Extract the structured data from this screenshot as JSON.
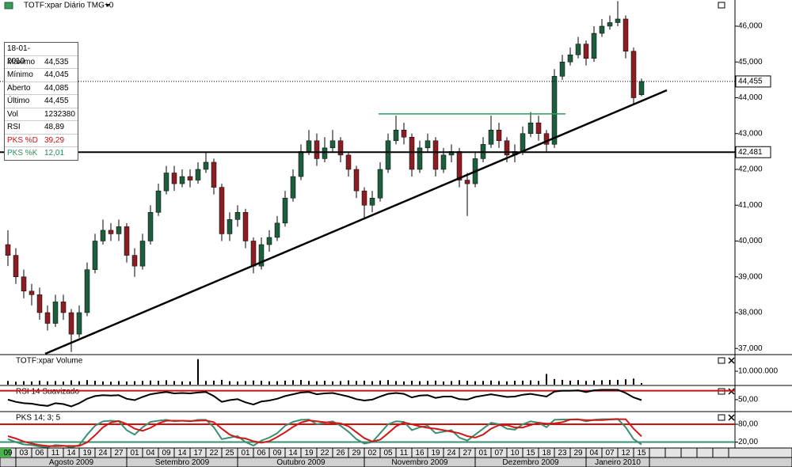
{
  "chart_data": [
    {
      "type": "candlestick",
      "title": "TOTF:xpar Diário TMG+0",
      "open": [
        39.9,
        39.6,
        39.0,
        38.6,
        38.5,
        38.0,
        37.7,
        38.3,
        38.0,
        37.4,
        38.0,
        39.2,
        40.0,
        40.3,
        40.2,
        40.4,
        39.6,
        39.3,
        40.0,
        40.8,
        41.4,
        41.9,
        41.6,
        41.8,
        41.7,
        42.0,
        42.2,
        41.5,
        40.2,
        40.6,
        40.8,
        40.0,
        39.3,
        39.9,
        40.1,
        40.5,
        41.2,
        41.8,
        42.5,
        42.8,
        42.3,
        42.6,
        42.8,
        42.4,
        42.0,
        41.4,
        41.0,
        41.2,
        42.0,
        42.8,
        43.1,
        42.9,
        42.0,
        42.6,
        42.8,
        42.0,
        42.4,
        42.5,
        41.7,
        41.6,
        42.3,
        42.7,
        43.1,
        42.8,
        42.4,
        42.5,
        43.0,
        43.3,
        43.0,
        42.7,
        44.6,
        45.0,
        45.2,
        45.5,
        45.1,
        45.8,
        46.0,
        46.1,
        46.2,
        45.3,
        44.085
      ],
      "high": [
        40.3,
        39.8,
        39.2,
        38.8,
        38.7,
        38.2,
        38.5,
        38.5,
        38.1,
        38.2,
        39.4,
        40.2,
        40.6,
        40.5,
        40.6,
        40.5,
        39.8,
        40.2,
        41.0,
        41.6,
        42.1,
        42.1,
        42.0,
        42.0,
        42.2,
        42.5,
        42.3,
        41.6,
        40.8,
        41.0,
        40.9,
        40.1,
        40.1,
        40.3,
        40.7,
        41.4,
        42.0,
        42.7,
        43.1,
        43.0,
        42.9,
        43.1,
        42.9,
        42.5,
        42.1,
        41.5,
        41.4,
        42.2,
        43.0,
        43.5,
        43.3,
        43.0,
        42.8,
        43.0,
        42.9,
        42.6,
        42.7,
        42.6,
        41.9,
        42.5,
        42.9,
        43.5,
        43.3,
        42.9,
        42.7,
        43.2,
        43.6,
        43.5,
        43.1,
        44.8,
        45.2,
        45.4,
        45.7,
        45.6,
        46.0,
        46.2,
        46.3,
        46.7,
        46.3,
        45.4,
        44.535
      ],
      "low": [
        39.3,
        38.8,
        38.4,
        38.2,
        37.8,
        37.5,
        37.6,
        37.8,
        36.9,
        37.3,
        37.9,
        39.1,
        39.9,
        40.0,
        40.0,
        39.4,
        39.0,
        39.2,
        39.9,
        40.7,
        41.3,
        41.4,
        41.5,
        41.5,
        41.6,
        41.9,
        41.3,
        40.0,
        40.0,
        40.4,
        39.8,
        39.1,
        39.2,
        39.7,
        40.0,
        40.4,
        41.1,
        41.7,
        42.4,
        42.1,
        42.2,
        42.5,
        42.2,
        41.8,
        41.2,
        40.6,
        40.8,
        41.1,
        41.9,
        42.7,
        42.7,
        41.8,
        41.9,
        42.5,
        41.8,
        41.9,
        42.2,
        41.5,
        40.7,
        41.5,
        42.2,
        42.6,
        42.6,
        42.2,
        42.2,
        42.4,
        42.9,
        42.8,
        42.5,
        42.6,
        44.5,
        44.9,
        45.1,
        44.9,
        45.0,
        45.7,
        45.9,
        46.0,
        45.1,
        43.8,
        44.045
      ],
      "close": [
        39.6,
        39.0,
        38.6,
        38.5,
        38.0,
        37.7,
        38.3,
        38.0,
        37.4,
        38.0,
        39.2,
        40.0,
        40.3,
        40.2,
        40.4,
        39.6,
        39.3,
        40.0,
        40.8,
        41.4,
        41.9,
        41.6,
        41.8,
        41.7,
        42.0,
        42.2,
        41.5,
        40.2,
        40.6,
        40.8,
        40.0,
        39.3,
        39.9,
        40.1,
        40.5,
        41.2,
        41.8,
        42.5,
        42.8,
        42.3,
        42.6,
        42.8,
        42.4,
        42.0,
        41.4,
        41.0,
        41.2,
        42.0,
        42.8,
        43.1,
        42.9,
        42.0,
        42.6,
        42.8,
        42.0,
        42.4,
        42.5,
        41.7,
        41.6,
        42.3,
        42.7,
        43.1,
        42.8,
        42.4,
        42.5,
        43.0,
        43.3,
        43.0,
        42.7,
        44.6,
        45.0,
        45.2,
        45.5,
        45.1,
        45.8,
        46.0,
        46.1,
        46.2,
        45.3,
        44.0,
        44.455
      ],
      "up_color": "#1d5e3c",
      "down_color": "#8b1e23",
      "ylim": [
        36.85,
        46.73
      ],
      "yticks": [
        {
          "value": 37,
          "label": "37,000"
        },
        {
          "value": 38,
          "label": "38,000"
        },
        {
          "value": 39,
          "label": "39,000"
        },
        {
          "value": 40,
          "label": "40,000"
        },
        {
          "value": 41,
          "label": "41,000"
        },
        {
          "value": 42,
          "label": "42,000"
        },
        {
          "value": 43,
          "label": "43,000"
        },
        {
          "value": 44,
          "label": "44,000"
        },
        {
          "value": 45,
          "label": "45,000"
        },
        {
          "value": 46,
          "label": "46,000"
        }
      ],
      "reference_lines": [
        {
          "value": 44.455,
          "label": "44,455",
          "style": "dotted"
        },
        {
          "value": 42.481,
          "label": "42,481",
          "style": "solid"
        }
      ],
      "trendlines": [
        {
          "x": [
            4.7,
            83.2
          ],
          "y": [
            36.85,
            44.21
          ],
          "color": "#000000"
        },
        {
          "x": [
            46.8,
            70.4
          ],
          "y": [
            43.55,
            43.55
          ],
          "color": "#2e9a5e"
        }
      ]
    },
    {
      "type": "bar",
      "title": "TOTF:xpar Volume",
      "color": "#000000",
      "values": [
        2800000,
        2200000,
        2600000,
        2400000,
        3000000,
        2500000,
        2700000,
        2300000,
        3200000,
        2600000,
        3400000,
        2900000,
        2500000,
        2200000,
        2700000,
        2400000,
        2600000,
        2800000,
        3100000,
        2900000,
        3300000,
        2700000,
        2500000,
        2400000,
        19000000,
        2800000,
        3000000,
        3600000,
        2600000,
        2400000,
        2700000,
        3100000,
        2900000,
        2500000,
        2600000,
        3000000,
        3300000,
        3500000,
        2800000,
        2600000,
        2900000,
        2500000,
        2700000,
        3200000,
        2800000,
        3000000,
        2600000,
        3100000,
        3400000,
        2700000,
        2500000,
        2900000,
        2600000,
        2800000,
        3000000,
        2400000,
        2700000,
        3300000,
        2900000,
        2600000,
        2800000,
        3100000,
        2700000,
        2500000,
        2900000,
        3000000,
        3200000,
        2800000,
        8000000,
        4200000,
        3600000,
        3000000,
        3400000,
        2800000,
        3100000,
        3300000,
        3500000,
        3600000,
        4000000,
        4500000,
        1232380
      ],
      "ylim": [
        0,
        21800000
      ],
      "yticks": [
        {
          "value": 10000000,
          "label": "10.000.000"
        }
      ]
    },
    {
      "type": "line",
      "title": "RSI 14 Suavizado",
      "color": "#000000",
      "values": [
        50,
        45,
        42,
        41,
        38,
        36,
        42,
        40,
        35,
        42,
        52,
        58,
        60,
        59,
        60,
        52,
        49,
        56,
        62,
        65,
        67,
        64,
        65,
        64,
        66,
        67,
        58,
        45,
        49,
        51,
        44,
        39,
        46,
        48,
        52,
        58,
        62,
        66,
        67,
        62,
        64,
        65,
        61,
        57,
        51,
        48,
        50,
        57,
        63,
        65,
        63,
        55,
        59,
        60,
        54,
        57,
        57,
        51,
        50,
        56,
        59,
        62,
        59,
        56,
        57,
        61,
        63,
        60,
        57,
        68,
        70,
        70,
        71,
        67,
        71,
        72,
        72,
        72,
        65,
        55,
        48.89
      ],
      "ylim": [
        25,
        80
      ],
      "yticks": [
        {
          "value": 50,
          "label": "50,00"
        }
      ],
      "levels": [
        {
          "value": 70,
          "color": "#d01010"
        }
      ]
    },
    {
      "type": "line",
      "title": "PKS 14; 3; 5",
      "series": [
        {
          "color": "#3a9070",
          "values": [
            30,
            20,
            12,
            10,
            5,
            3,
            10,
            8,
            2,
            10,
            45,
            75,
            90,
            92,
            90,
            60,
            45,
            70,
            88,
            92,
            95,
            90,
            92,
            90,
            95,
            95,
            70,
            30,
            35,
            40,
            20,
            8,
            25,
            35,
            50,
            75,
            88,
            95,
            96,
            80,
            85,
            90,
            75,
            55,
            30,
            15,
            20,
            50,
            80,
            90,
            88,
            60,
            70,
            75,
            50,
            55,
            60,
            35,
            25,
            45,
            65,
            85,
            80,
            65,
            62,
            80,
            90,
            85,
            70,
            95,
            96,
            96,
            97,
            90,
            95,
            97,
            97,
            98,
            70,
            30,
            12.01
          ]
        },
        {
          "color": "#d01818",
          "values": [
            40,
            32,
            22,
            15,
            10,
            7,
            6,
            7,
            7,
            7,
            19,
            43,
            70,
            86,
            91,
            81,
            65,
            58,
            68,
            83,
            92,
            92,
            92,
            91,
            92,
            93,
            87,
            65,
            45,
            35,
            32,
            23,
            18,
            23,
            37,
            53,
            71,
            86,
            93,
            90,
            87,
            85,
            83,
            73,
            53,
            33,
            22,
            28,
            50,
            73,
            86,
            80,
            73,
            68,
            65,
            60,
            55,
            50,
            40,
            35,
            45,
            65,
            77,
            77,
            69,
            69,
            77,
            85,
            82,
            83,
            87,
            96,
            96,
            94,
            94,
            94,
            96,
            97,
            97,
            65,
            39.29
          ]
        }
      ],
      "ylim": [
        0,
        120
      ],
      "yticks": [
        {
          "value": 20,
          "label": "20,00"
        },
        {
          "value": 80,
          "label": "80,00"
        }
      ],
      "levels": [
        {
          "value": 80,
          "color": "#d01010"
        },
        {
          "value": 20,
          "color": "#3a9070"
        }
      ]
    }
  ],
  "x_axis": {
    "months": [
      {
        "name": null,
        "days": [
          "09"
        ]
      },
      {
        "name": "Agosto 2009",
        "days": [
          "03",
          "06",
          "11",
          "14",
          "19",
          "24",
          "27"
        ]
      },
      {
        "name": "Setembro 2009",
        "days": [
          "01",
          "04",
          "09",
          "14",
          "17",
          "22",
          "25"
        ]
      },
      {
        "name": "Outubro 2009",
        "days": [
          "01",
          "06",
          "09",
          "14",
          "19",
          "22",
          "26",
          "29"
        ]
      },
      {
        "name": "Novembro 2009",
        "days": [
          "02",
          "05",
          "11",
          "16",
          "19",
          "24",
          "27"
        ]
      },
      {
        "name": "Dezembro 2009",
        "days": [
          "01",
          "07",
          "10",
          "15",
          "18",
          "23",
          "29"
        ]
      },
      {
        "name": "Janeiro 2010",
        "days": [
          "04",
          "07",
          "12",
          "15"
        ]
      }
    ]
  },
  "info_box": {
    "date": "18-01-2010",
    "rows": [
      {
        "label": "Máximo",
        "value": "44,535"
      },
      {
        "label": "Mínimo",
        "value": "44,045"
      },
      {
        "label": "Aberto",
        "value": "44,085"
      },
      {
        "label": "Último",
        "value": "44,455"
      },
      {
        "label": "Vol",
        "value": "1232380"
      },
      {
        "label": "RSI",
        "value": "48,89"
      },
      {
        "label": "PKS %D",
        "value": "39,29",
        "color": "#c01818"
      },
      {
        "label": "PKS %K",
        "value": "12,01",
        "color": "#2f8a5e"
      }
    ]
  }
}
